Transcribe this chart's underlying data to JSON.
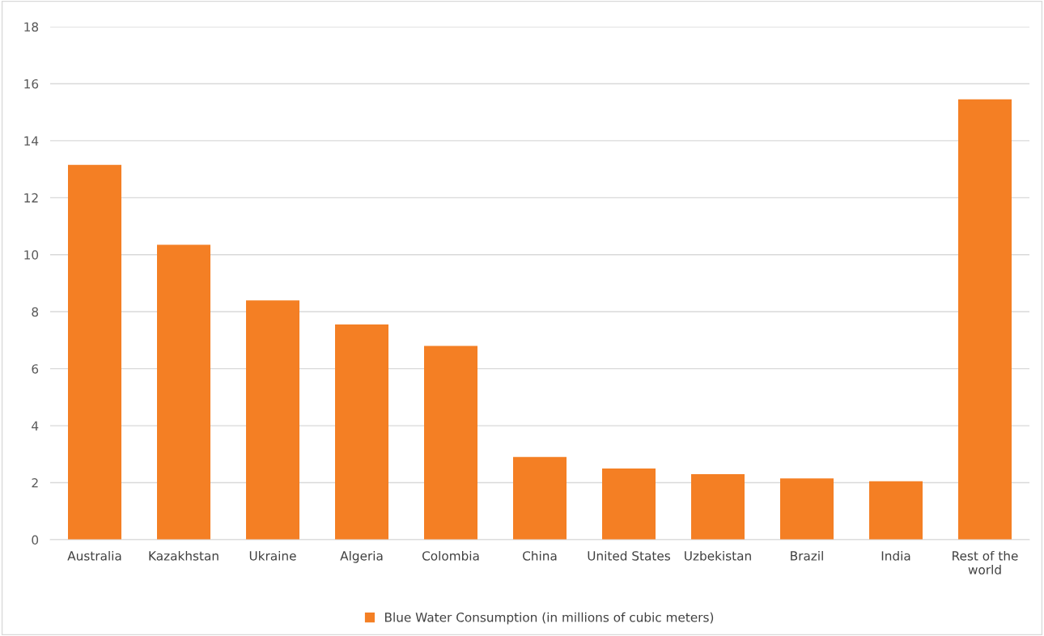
{
  "chart_data": {
    "type": "bar",
    "categories": [
      "Australia",
      "Kazakhstan",
      "Ukraine",
      "Algeria",
      "Colombia",
      "China",
      "United States",
      "Uzbekistan",
      "Brazil",
      "India",
      "Rest of the\nworld"
    ],
    "series": [
      {
        "name": "Blue Water Consumption (in millions of cubic meters)",
        "color": "#f47f24",
        "values": [
          13.15,
          10.35,
          8.4,
          7.55,
          6.8,
          2.9,
          2.5,
          2.3,
          2.15,
          2.05,
          15.45
        ]
      }
    ],
    "ylim": [
      0,
      18
    ],
    "yticks": [
      0,
      2,
      4,
      6,
      8,
      10,
      12,
      14,
      16,
      18
    ],
    "grid": "y",
    "legend": "bottom"
  }
}
